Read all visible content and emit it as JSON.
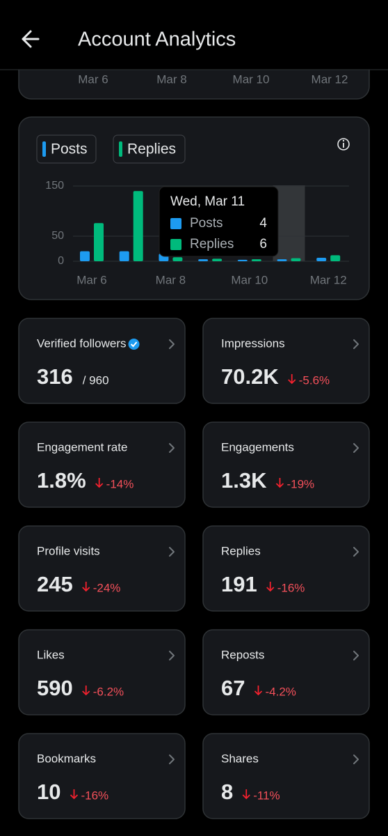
{
  "header": {
    "title": "Account Analytics"
  },
  "top_chart": {
    "x_labels": [
      "Mar 6",
      "Mar 8",
      "Mar 10",
      "Mar 12"
    ]
  },
  "chart_data": {
    "type": "bar",
    "categories": [
      "Mar 6",
      null,
      "Mar 8",
      null,
      "Mar 10",
      null,
      "Mar 12"
    ],
    "series": [
      {
        "name": "Posts",
        "color": "#1d9bf0",
        "values": [
          20,
          20,
          15,
          4,
          3,
          4,
          7
        ]
      },
      {
        "name": "Replies",
        "color": "#00ba7c",
        "values": [
          76,
          140,
          8,
          5,
          4,
          6,
          12
        ]
      }
    ],
    "ylim": [
      0,
      150
    ],
    "yticks": [
      0,
      50,
      150
    ],
    "grid": true,
    "tooltip": {
      "title": "Wed, Mar 11"
    }
  },
  "cards": [
    {
      "label": "Verified followers",
      "value": "316",
      "sub": "/ 960"
    },
    {
      "label": "Impressions",
      "value": "70.2K",
      "change": "-5.6%"
    },
    {
      "label": "Engagement rate",
      "value": "1.8%",
      "change": "-14%"
    },
    {
      "label": "Engagements",
      "value": "1.3K",
      "change": "-19%"
    },
    {
      "label": "Profile visits",
      "value": "245",
      "change": "-24%"
    },
    {
      "label": "Replies",
      "value": "191",
      "change": "-16%"
    },
    {
      "label": "Likes",
      "value": "590",
      "change": "-6.2%"
    },
    {
      "label": "Reposts",
      "value": "67",
      "change": "-4.2%"
    },
    {
      "label": "Bookmarks",
      "value": "10",
      "change": "-16%"
    },
    {
      "label": "Shares",
      "value": "8",
      "change": "-11%"
    }
  ]
}
